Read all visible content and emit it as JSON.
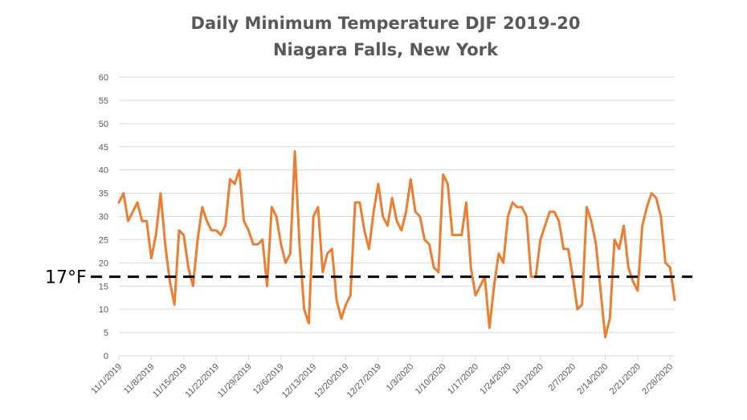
{
  "chart_data": {
    "type": "line",
    "title": "Daily Minimum Temperature DJF 2019-20",
    "subtitle": "Niagara Falls, New York",
    "xlabel": "",
    "ylabel": "",
    "ylim": [
      0,
      60
    ],
    "yticks": [
      0,
      5,
      10,
      15,
      20,
      25,
      30,
      35,
      40,
      45,
      50,
      55,
      60
    ],
    "grid": true,
    "legend": "none",
    "x_start": "11/1/2019",
    "x_tick_labels": [
      "11/1/2019",
      "11/8/2019",
      "11/15/2019",
      "11/22/2019",
      "11/29/2019",
      "12/6/2019",
      "12/13/2019",
      "12/20/2019",
      "12/27/2019",
      "1/3/2020",
      "1/10/2020",
      "1/17/2020",
      "1/24/2020",
      "1/31/2020",
      "2/7/2020",
      "2/14/2020",
      "2/21/2020",
      "2/28/2020"
    ],
    "series": [
      {
        "color": "#ed7d31",
        "values": [
          33,
          35,
          29,
          31,
          33,
          29,
          29,
          21,
          26,
          35,
          24,
          16,
          11,
          27,
          26,
          19,
          15,
          25,
          32,
          29,
          27,
          27,
          26,
          28,
          38,
          37,
          40,
          29,
          27,
          24,
          24,
          25,
          15,
          32,
          30,
          24,
          20,
          22,
          44,
          24,
          10,
          7,
          30,
          32,
          18,
          22,
          23,
          12,
          8,
          11,
          13,
          33,
          33,
          27,
          23,
          31,
          37,
          30,
          28,
          34,
          29,
          27,
          31,
          38,
          31,
          30,
          25,
          24,
          19,
          18,
          39,
          37,
          26,
          26,
          26,
          33,
          19,
          13,
          15,
          17,
          6,
          15,
          22,
          20,
          30,
          33,
          32,
          32,
          30,
          17,
          17,
          25,
          28,
          31,
          31,
          29,
          23,
          23,
          17,
          10,
          11,
          32,
          29,
          24,
          14,
          4,
          8,
          25,
          23,
          28,
          19,
          16,
          14,
          28,
          32,
          35,
          34,
          30,
          20,
          19,
          12
        ]
      }
    ],
    "annotations": [
      {
        "type": "hline",
        "y": 17,
        "label": "17°F",
        "style": "dashed",
        "color": "#000000"
      }
    ]
  }
}
